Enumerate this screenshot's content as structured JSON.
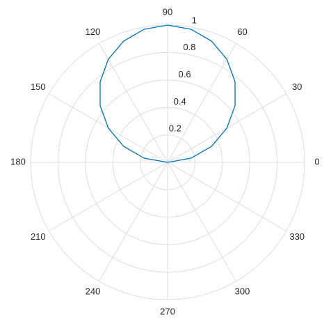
{
  "chart_data": {
    "type": "polar",
    "color": "#0072bd",
    "theta": [
      0,
      10,
      20,
      30,
      40,
      50,
      60,
      70,
      80,
      90,
      100,
      110,
      120,
      130,
      140,
      150,
      160,
      170,
      180
    ],
    "r": [
      0,
      0.1736,
      0.342,
      0.5,
      0.6428,
      0.766,
      0.866,
      0.9397,
      0.9848,
      1,
      0.9848,
      0.9397,
      0.866,
      0.766,
      0.6428,
      0.5,
      0.342,
      0.1736,
      0
    ],
    "rlim": [
      0,
      1
    ],
    "rticks": [
      0.2,
      0.4,
      0.6,
      0.8,
      1
    ],
    "thetaticks": [
      0,
      30,
      60,
      90,
      120,
      150,
      180,
      210,
      240,
      270,
      300,
      330
    ],
    "grid": true
  }
}
